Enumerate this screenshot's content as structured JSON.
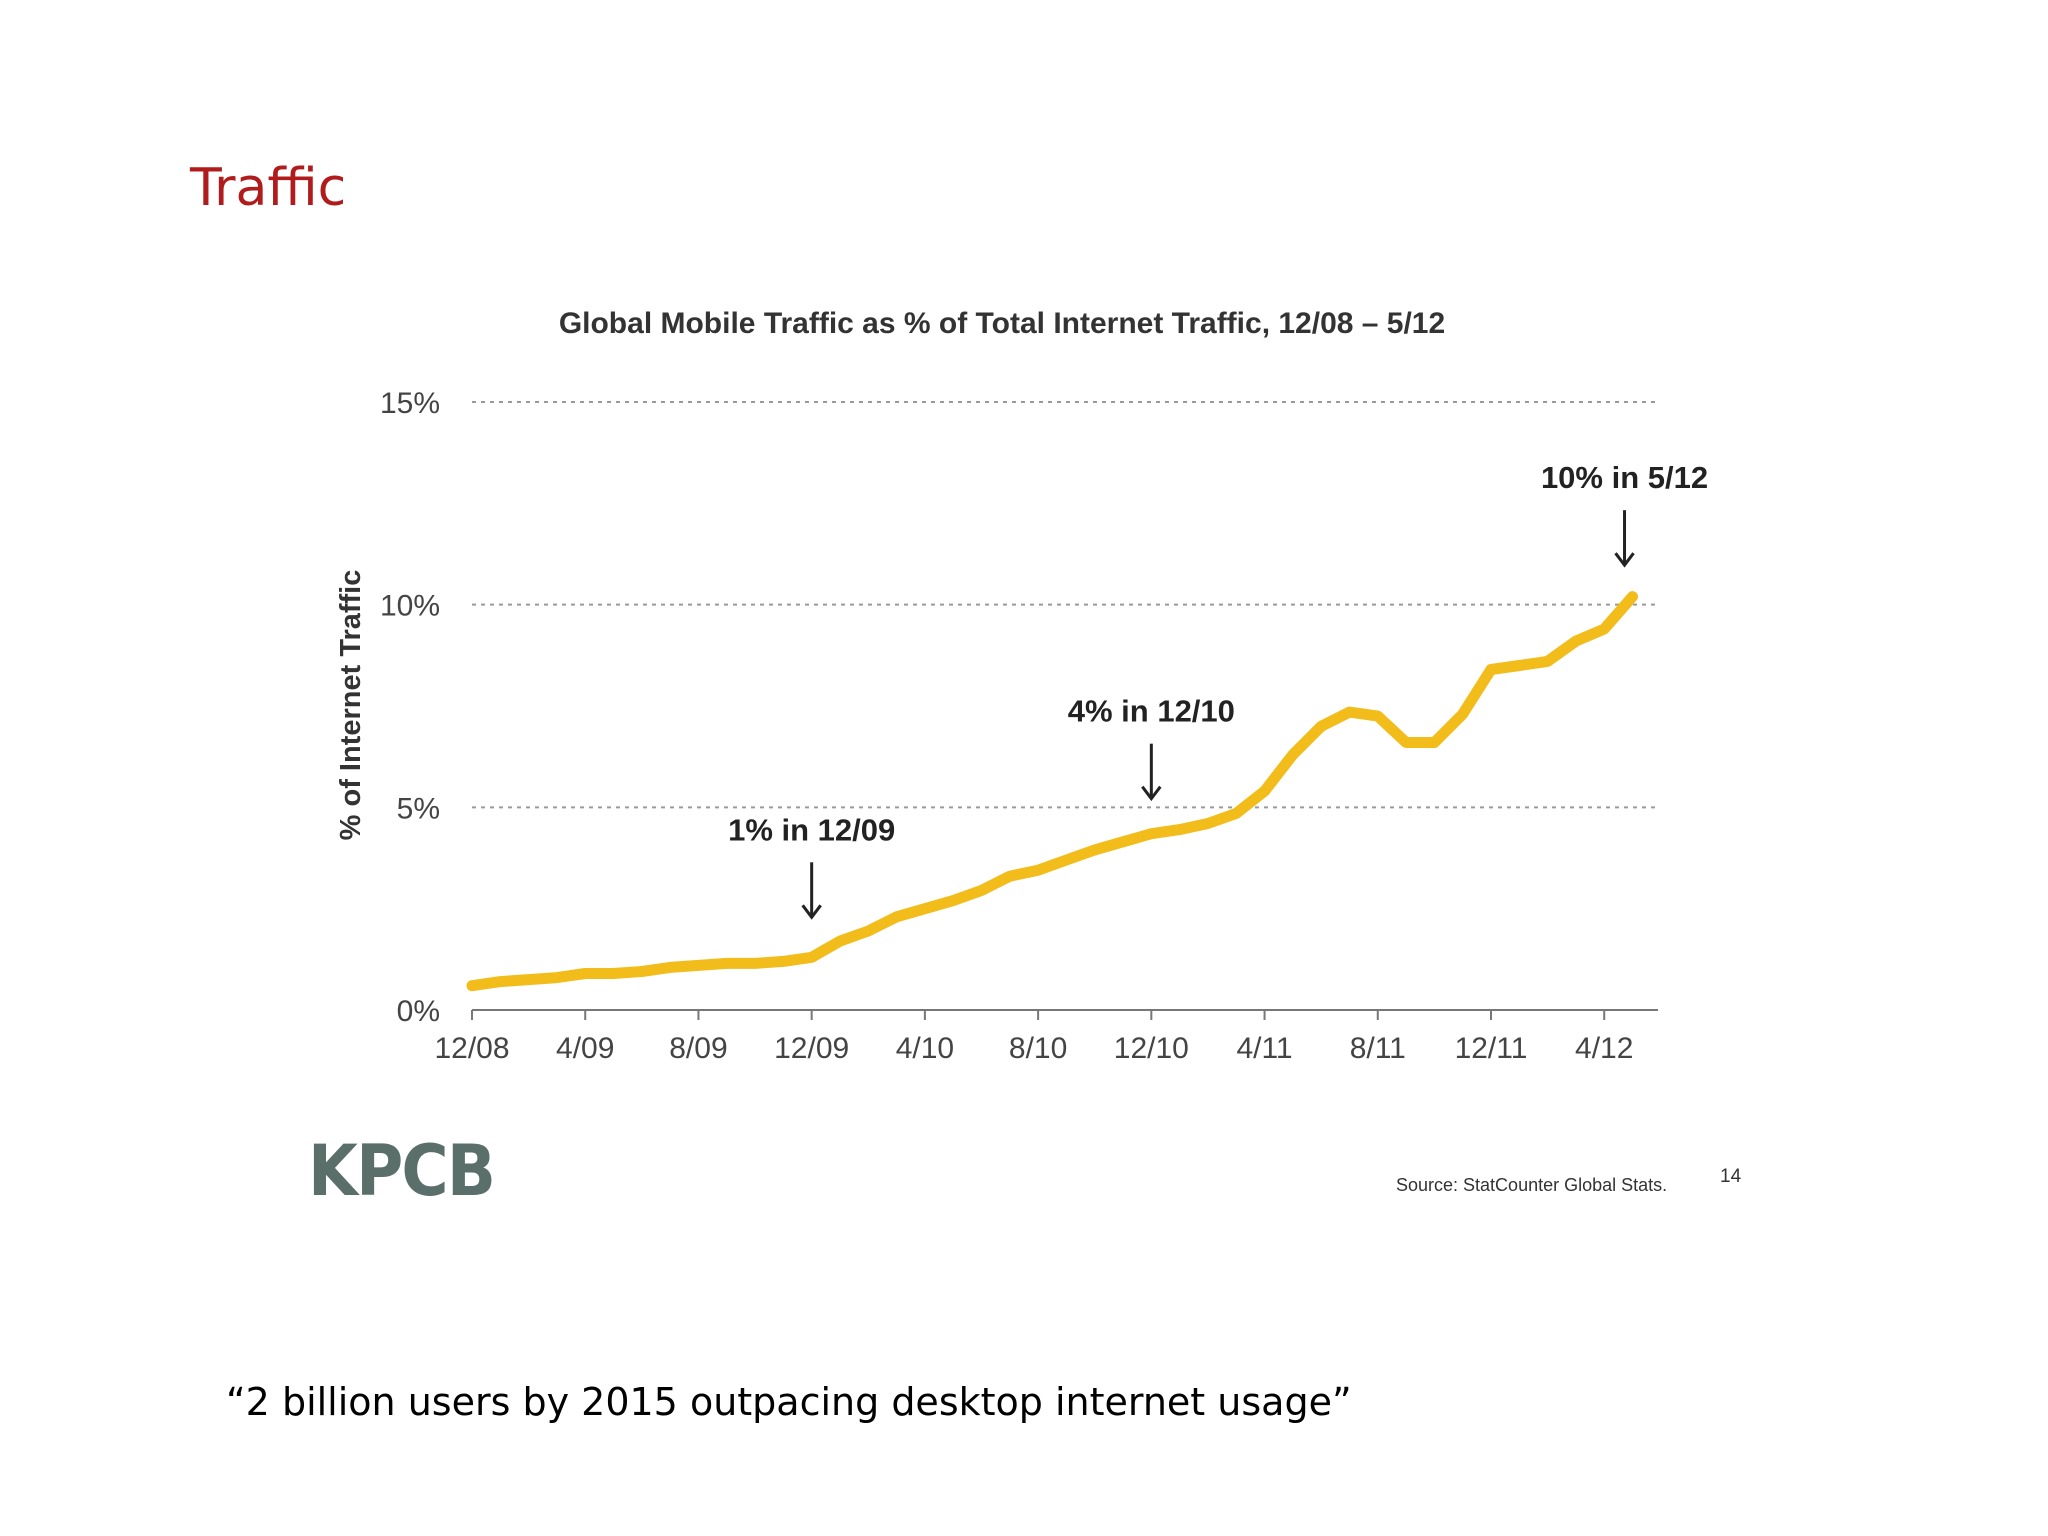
{
  "slide": {
    "title": "Traffic",
    "quote": "“2 billion users by 2015 outpacing desktop internet usage”",
    "logo": "KPCB",
    "source": "Source: StatCounter Global Stats.",
    "page_number": "14"
  },
  "colors": {
    "title": "#b01c1c",
    "line": "#f2bc1b",
    "logo": "#5a6f6a"
  },
  "chart_data": {
    "type": "line",
    "title": "Global Mobile Traffic as % of Total Internet Traffic, 12/08 – 5/12",
    "xlabel": "",
    "ylabel": "% of Internet Traffic",
    "x_tick_labels": [
      "12/08",
      "4/09",
      "8/09",
      "12/09",
      "4/10",
      "8/10",
      "12/10",
      "4/11",
      "8/11",
      "12/11",
      "4/12"
    ],
    "y_tick_labels": [
      "0%",
      "5%",
      "10%",
      "15%"
    ],
    "y_ticks": [
      0,
      5,
      10,
      15
    ],
    "xlim": [
      "12/08",
      "5/12"
    ],
    "ylim": [
      0,
      15
    ],
    "grid": "horizontal dotted",
    "series": [
      {
        "x": [
          "12/08",
          "1/09",
          "2/09",
          "3/09",
          "4/09",
          "5/09",
          "6/09",
          "7/09",
          "8/09",
          "9/09",
          "10/09",
          "11/09",
          "12/09",
          "1/10",
          "2/10",
          "3/10",
          "4/10",
          "5/10",
          "6/10",
          "7/10",
          "8/10",
          "9/10",
          "10/10",
          "11/10",
          "12/10",
          "1/11",
          "2/11",
          "3/11",
          "4/11",
          "5/11",
          "6/11",
          "7/11",
          "8/11",
          "9/11",
          "10/11",
          "11/11",
          "12/11",
          "1/12",
          "2/12",
          "3/12",
          "4/12",
          "5/12"
        ],
        "values": [
          0.6,
          0.7,
          0.75,
          0.8,
          0.9,
          0.9,
          0.95,
          1.05,
          1.1,
          1.15,
          1.15,
          1.2,
          1.3,
          1.7,
          1.95,
          2.3,
          2.5,
          2.7,
          2.95,
          3.3,
          3.45,
          3.7,
          3.95,
          4.15,
          4.35,
          4.45,
          4.6,
          4.85,
          5.4,
          6.3,
          7.0,
          7.35,
          7.25,
          6.6,
          6.6,
          7.3,
          8.4,
          8.5,
          8.6,
          9.1,
          9.4,
          10.2
        ]
      }
    ],
    "annotations": [
      {
        "text": "1% in 12/09",
        "x": "12/09",
        "y": 1.3
      },
      {
        "text": "4% in 12/10",
        "x": "12/10",
        "y": 4.35
      },
      {
        "text": "10% in 5/12",
        "x": "5/12",
        "y": 10.9
      }
    ]
  }
}
